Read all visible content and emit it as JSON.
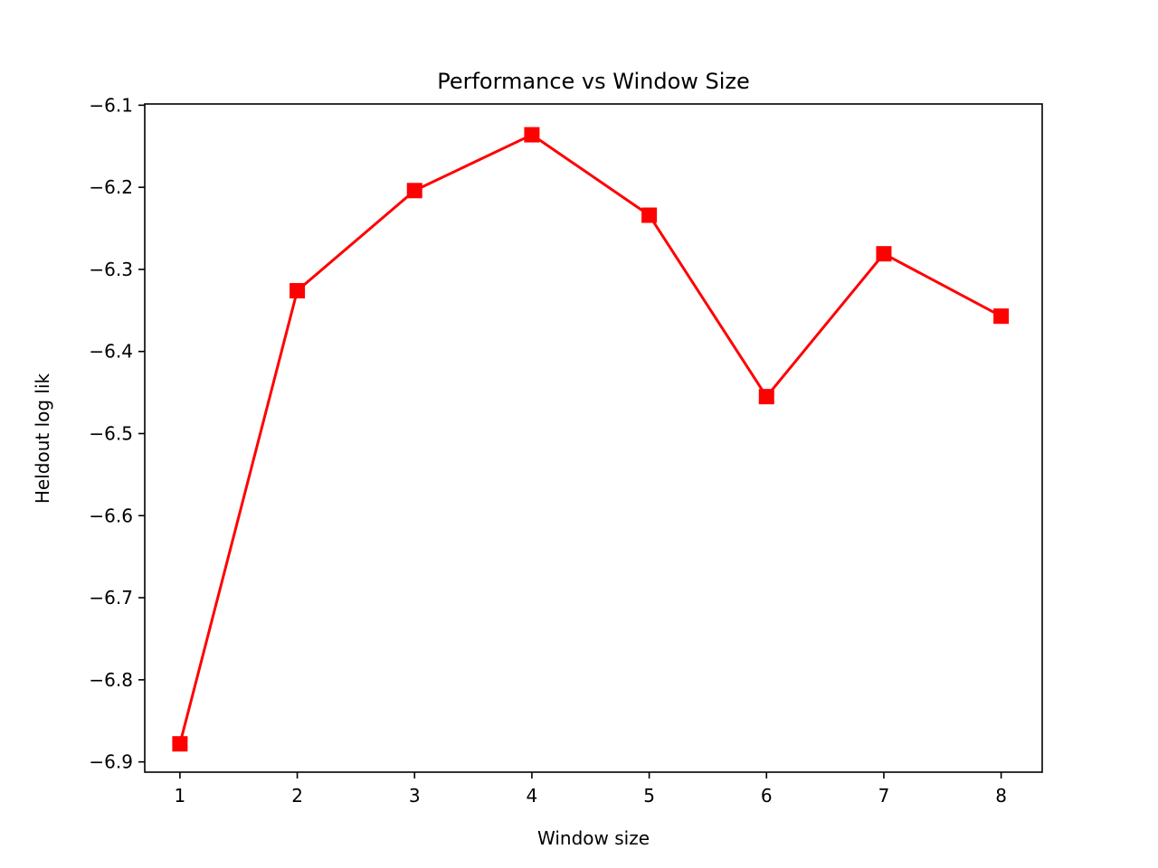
{
  "chart_data": {
    "type": "line",
    "title": "Performance vs Window Size",
    "xlabel": "Window size",
    "ylabel": "Heldout log lik",
    "x": [
      1,
      2,
      3,
      4,
      5,
      6,
      7,
      8
    ],
    "series": [
      {
        "values": [
          -6.878,
          -6.326,
          -6.204,
          -6.136,
          -6.234,
          -6.455,
          -6.281,
          -6.357
        ],
        "color": "#ff0000",
        "marker": "square"
      }
    ],
    "xlim": [
      0.7,
      8.35
    ],
    "ylim": [
      -6.9125,
      -6.0985
    ],
    "xticks": [
      1,
      2,
      3,
      4,
      5,
      6,
      7,
      8
    ],
    "xtick_labels": [
      "1",
      "2",
      "3",
      "4",
      "5",
      "6",
      "7",
      "8"
    ],
    "yticks": [
      -6.1,
      -6.2,
      -6.3,
      -6.4,
      -6.5,
      -6.6,
      -6.7,
      -6.8,
      -6.9
    ],
    "ytick_labels": [
      "−6.1",
      "−6.2",
      "−6.3",
      "−6.4",
      "−6.5",
      "−6.6",
      "−6.7",
      "−6.8",
      "−6.9"
    ],
    "grid": false,
    "legend": false
  }
}
